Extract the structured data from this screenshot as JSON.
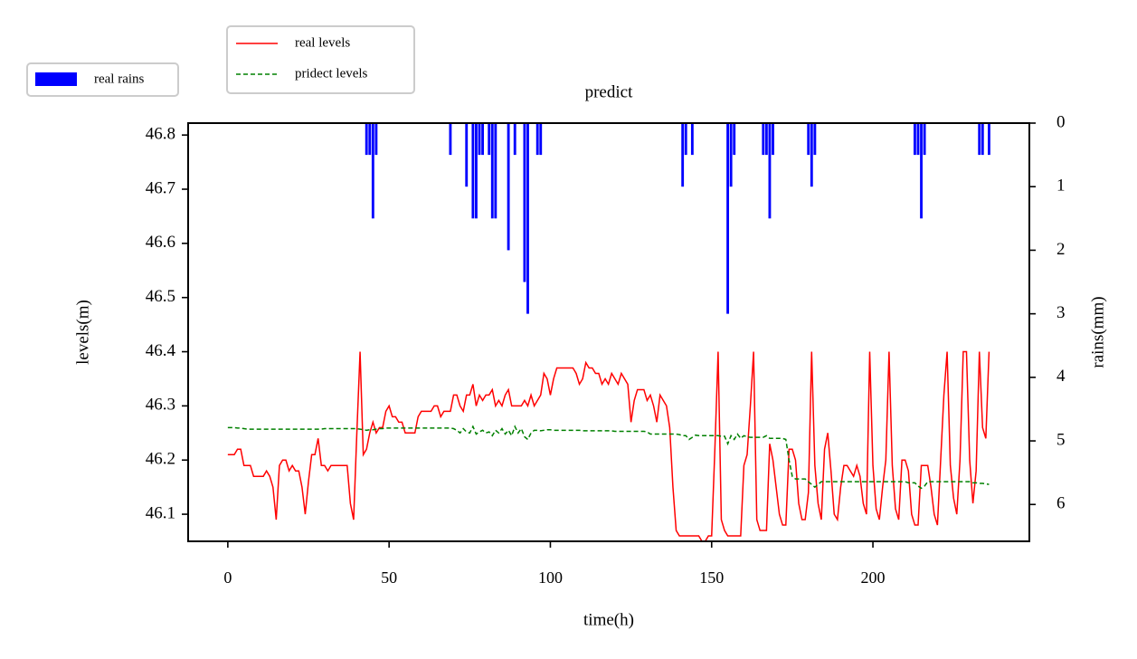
{
  "chart_data": {
    "type": "combo",
    "title": "predict",
    "x_label": "time(h)",
    "y_label": "levels(m)",
    "y2_label": "rains(mm)",
    "xlim": [
      -12.3,
      248.5
    ],
    "xticks": [
      0,
      50,
      100,
      150,
      200
    ],
    "ylim": [
      46.05,
      46.822
    ],
    "yticks": [
      46.1,
      46.2,
      46.3,
      46.4,
      46.5,
      46.6,
      46.7,
      46.8
    ],
    "y2lim": [
      6.58,
      0
    ],
    "y2ticks": [
      0,
      1,
      2,
      3,
      4,
      5,
      6
    ],
    "series": [
      {
        "name": "real rains",
        "type": "bar",
        "axis": "y2",
        "color": "#0000ff",
        "bar_width": 0.8,
        "x": [
          43,
          44,
          45,
          46,
          69,
          74,
          76,
          77,
          78,
          79,
          81,
          82,
          83,
          87,
          89,
          92,
          93,
          96,
          97,
          141,
          142,
          144,
          155,
          156,
          157,
          166,
          167,
          168,
          169,
          180,
          181,
          182,
          213,
          214,
          215,
          216,
          233,
          234,
          236
        ],
        "values": [
          0.5,
          0.5,
          1.5,
          0.5,
          0.5,
          1,
          1.5,
          1.5,
          0.5,
          0.5,
          0.5,
          1.5,
          1.5,
          2,
          0.5,
          2.5,
          3,
          0.5,
          0.5,
          1,
          0.5,
          0.5,
          3,
          1,
          0.5,
          0.5,
          0.5,
          1.5,
          0.5,
          0.5,
          1,
          0.5,
          0.5,
          0.5,
          1.5,
          0.5,
          0.5,
          0.5,
          0.5
        ]
      },
      {
        "name": "real levels",
        "type": "line",
        "color": "#ff0000",
        "linestyle": "solid",
        "x": [
          0,
          1,
          2,
          3,
          4,
          5,
          6,
          7,
          8,
          9,
          10,
          11,
          12,
          13,
          14,
          15,
          16,
          17,
          18,
          19,
          20,
          21,
          22,
          23,
          24,
          25,
          26,
          27,
          28,
          29,
          30,
          31,
          32,
          33,
          34,
          35,
          36,
          37,
          38,
          39,
          40,
          41,
          42,
          43,
          44,
          45,
          46,
          47,
          48,
          49,
          50,
          51,
          52,
          53,
          54,
          55,
          56,
          57,
          58,
          59,
          60,
          61,
          62,
          63,
          64,
          65,
          66,
          67,
          68,
          69,
          70,
          71,
          72,
          73,
          74,
          75,
          76,
          77,
          78,
          79,
          80,
          81,
          82,
          83,
          84,
          85,
          86,
          87,
          88,
          89,
          90,
          91,
          92,
          93,
          94,
          95,
          96,
          97,
          98,
          99,
          100,
          101,
          102,
          103,
          104,
          105,
          106,
          107,
          108,
          109,
          110,
          111,
          112,
          113,
          114,
          115,
          116,
          117,
          118,
          119,
          120,
          121,
          122,
          123,
          124,
          125,
          126,
          127,
          128,
          129,
          130,
          131,
          132,
          133,
          134,
          135,
          136,
          137,
          138,
          139,
          140,
          141,
          142,
          143,
          144,
          145,
          146,
          147,
          148,
          149,
          150,
          151,
          152,
          153,
          154,
          155,
          156,
          157,
          158,
          159,
          160,
          161,
          162,
          163,
          164,
          165,
          166,
          167,
          168,
          169,
          170,
          171,
          172,
          173,
          174,
          175,
          176,
          177,
          178,
          179,
          180,
          181,
          182,
          183,
          184,
          185,
          186,
          187,
          188,
          189,
          190,
          191,
          192,
          193,
          194,
          195,
          196,
          197,
          198,
          199,
          200,
          201,
          202,
          203,
          204,
          205,
          206,
          207,
          208,
          209,
          210,
          211,
          212,
          213,
          214,
          215,
          216,
          217,
          218,
          219,
          220,
          221,
          222,
          223,
          224,
          225,
          226,
          227,
          228,
          229,
          230,
          231,
          232,
          233,
          234,
          235,
          236
        ],
        "values": [
          46.21,
          46.21,
          46.21,
          46.22,
          46.22,
          46.19,
          46.19,
          46.19,
          46.17,
          46.17,
          46.17,
          46.17,
          46.18,
          46.17,
          46.15,
          46.09,
          46.19,
          46.2,
          46.2,
          46.18,
          46.19,
          46.18,
          46.18,
          46.15,
          46.1,
          46.16,
          46.21,
          46.21,
          46.24,
          46.19,
          46.19,
          46.18,
          46.19,
          46.19,
          46.19,
          46.19,
          46.19,
          46.19,
          46.12,
          46.09,
          46.25,
          46.4,
          46.21,
          46.22,
          46.25,
          46.27,
          46.25,
          46.26,
          46.26,
          46.29,
          46.3,
          46.28,
          46.28,
          46.27,
          46.27,
          46.25,
          46.25,
          46.25,
          46.25,
          46.28,
          46.29,
          46.29,
          46.29,
          46.29,
          46.3,
          46.3,
          46.28,
          46.29,
          46.29,
          46.29,
          46.32,
          46.32,
          46.3,
          46.29,
          46.32,
          46.32,
          46.34,
          46.3,
          46.32,
          46.31,
          46.32,
          46.32,
          46.33,
          46.3,
          46.31,
          46.3,
          46.32,
          46.33,
          46.3,
          46.3,
          46.3,
          46.3,
          46.31,
          46.3,
          46.32,
          46.3,
          46.31,
          46.32,
          46.36,
          46.35,
          46.32,
          46.35,
          46.37,
          46.37,
          46.37,
          46.37,
          46.37,
          46.37,
          46.36,
          46.34,
          46.35,
          46.38,
          46.37,
          46.37,
          46.36,
          46.36,
          46.34,
          46.35,
          46.34,
          46.36,
          46.35,
          46.34,
          46.36,
          46.35,
          46.34,
          46.27,
          46.31,
          46.33,
          46.33,
          46.33,
          46.31,
          46.32,
          46.3,
          46.27,
          46.32,
          46.31,
          46.3,
          46.26,
          46.15,
          46.07,
          46.06,
          46.06,
          46.06,
          46.06,
          46.06,
          46.06,
          46.06,
          46.05,
          46.05,
          46.06,
          46.06,
          46.22,
          46.4,
          46.09,
          46.07,
          46.06,
          46.06,
          46.06,
          46.06,
          46.06,
          46.19,
          46.21,
          46.3,
          46.4,
          46.09,
          46.07,
          46.07,
          46.07,
          46.23,
          46.2,
          46.15,
          46.1,
          46.08,
          46.08,
          46.22,
          46.22,
          46.2,
          46.12,
          46.09,
          46.09,
          46.14,
          46.4,
          46.19,
          46.12,
          46.09,
          46.22,
          46.25,
          46.18,
          46.1,
          46.09,
          46.15,
          46.19,
          46.19,
          46.18,
          46.17,
          46.19,
          46.17,
          46.12,
          46.1,
          46.4,
          46.19,
          46.11,
          46.09,
          46.15,
          46.2,
          46.4,
          46.19,
          46.11,
          46.09,
          46.2,
          46.2,
          46.18,
          46.1,
          46.08,
          46.08,
          46.19,
          46.19,
          46.19,
          46.15,
          46.1,
          46.08,
          46.2,
          46.32,
          46.4,
          46.19,
          46.13,
          46.1,
          46.2,
          46.4,
          46.4,
          46.2,
          46.12,
          46.18,
          46.4,
          46.26,
          46.24,
          46.4
        ]
      },
      {
        "name": "pridect levels",
        "type": "line",
        "color": "#008000",
        "linestyle": "dashed",
        "x": [
          0,
          1,
          2,
          3,
          4,
          5,
          6,
          7,
          8,
          9,
          10,
          11,
          12,
          13,
          14,
          15,
          16,
          17,
          18,
          19,
          20,
          21,
          22,
          23,
          24,
          25,
          26,
          27,
          28,
          29,
          30,
          31,
          32,
          33,
          34,
          35,
          36,
          37,
          38,
          39,
          40,
          41,
          42,
          43,
          44,
          45,
          46,
          47,
          48,
          49,
          50,
          51,
          52,
          53,
          54,
          55,
          56,
          57,
          58,
          59,
          60,
          61,
          62,
          63,
          64,
          65,
          66,
          67,
          68,
          69,
          70,
          71,
          72,
          73,
          74,
          75,
          76,
          77,
          78,
          79,
          80,
          81,
          82,
          83,
          84,
          85,
          86,
          87,
          88,
          89,
          90,
          91,
          92,
          93,
          94,
          95,
          96,
          97,
          98,
          99,
          100,
          101,
          102,
          103,
          104,
          105,
          106,
          107,
          108,
          109,
          110,
          111,
          112,
          113,
          114,
          115,
          116,
          117,
          118,
          119,
          120,
          121,
          122,
          123,
          124,
          125,
          126,
          127,
          128,
          129,
          130,
          131,
          132,
          133,
          134,
          135,
          136,
          137,
          138,
          139,
          140,
          141,
          142,
          143,
          144,
          145,
          146,
          147,
          148,
          149,
          150,
          151,
          152,
          153,
          154,
          155,
          156,
          157,
          158,
          159,
          160,
          161,
          162,
          163,
          164,
          165,
          166,
          167,
          168,
          169,
          170,
          171,
          172,
          173,
          174,
          175,
          176,
          177,
          178,
          179,
          180,
          181,
          182,
          183,
          184,
          185,
          186,
          187,
          188,
          189,
          190,
          191,
          192,
          193,
          194,
          195,
          196,
          197,
          198,
          199,
          200,
          201,
          202,
          203,
          204,
          205,
          206,
          207,
          208,
          209,
          210,
          211,
          212,
          213,
          214,
          215,
          216,
          217,
          218,
          219,
          220,
          221,
          222,
          223,
          224,
          225,
          226,
          227,
          228,
          229,
          230,
          231,
          232,
          233,
          234,
          235,
          236
        ],
        "values": [
          46.26,
          46.26,
          46.26,
          46.259,
          46.259,
          46.258,
          46.257,
          46.257,
          46.257,
          46.257,
          46.257,
          46.257,
          46.257,
          46.257,
          46.257,
          46.257,
          46.257,
          46.257,
          46.257,
          46.257,
          46.257,
          46.257,
          46.257,
          46.257,
          46.257,
          46.257,
          46.257,
          46.257,
          46.257,
          46.257,
          46.258,
          46.258,
          46.258,
          46.258,
          46.258,
          46.258,
          46.258,
          46.258,
          46.258,
          46.258,
          46.258,
          46.257,
          46.256,
          46.255,
          46.256,
          46.256,
          46.257,
          46.258,
          46.258,
          46.259,
          46.259,
          46.259,
          46.259,
          46.259,
          46.259,
          46.259,
          46.259,
          46.259,
          46.259,
          46.259,
          46.259,
          46.259,
          46.259,
          46.259,
          46.259,
          46.259,
          46.259,
          46.259,
          46.259,
          46.259,
          46.258,
          46.255,
          46.25,
          46.258,
          46.252,
          46.25,
          46.262,
          46.248,
          46.252,
          46.255,
          46.25,
          46.252,
          46.245,
          46.255,
          46.25,
          46.258,
          46.248,
          46.255,
          46.245,
          46.262,
          46.25,
          46.258,
          46.243,
          46.238,
          46.25,
          46.255,
          46.255,
          46.254,
          46.255,
          46.256,
          46.256,
          46.255,
          46.255,
          46.255,
          46.255,
          46.255,
          46.255,
          46.255,
          46.255,
          46.255,
          46.254,
          46.254,
          46.254,
          46.254,
          46.254,
          46.254,
          46.254,
          46.254,
          46.254,
          46.254,
          46.253,
          46.253,
          46.253,
          46.253,
          46.253,
          46.253,
          46.253,
          46.253,
          46.253,
          46.253,
          46.252,
          46.248,
          46.248,
          46.248,
          46.248,
          46.248,
          46.248,
          46.248,
          46.248,
          46.248,
          46.247,
          46.245,
          46.245,
          46.238,
          46.242,
          46.246,
          46.245,
          46.245,
          46.245,
          46.245,
          46.245,
          46.245,
          46.245,
          46.244,
          46.244,
          46.23,
          46.245,
          46.238,
          46.248,
          46.24,
          46.245,
          46.243,
          46.242,
          46.242,
          46.242,
          46.242,
          46.242,
          46.245,
          46.24,
          46.24,
          46.24,
          46.24,
          46.24,
          46.238,
          46.2,
          46.17,
          46.165,
          46.165,
          46.165,
          46.165,
          46.16,
          46.155,
          46.15,
          46.155,
          46.16,
          46.16,
          46.16,
          46.16,
          46.16,
          46.16,
          46.16,
          46.16,
          46.16,
          46.16,
          46.16,
          46.16,
          46.16,
          46.16,
          46.16,
          46.16,
          46.16,
          46.16,
          46.16,
          46.16,
          46.16,
          46.16,
          46.16,
          46.16,
          46.16,
          46.16,
          46.16,
          46.158,
          46.158,
          46.158,
          46.152,
          46.148,
          46.152,
          46.16,
          46.16,
          46.16,
          46.16,
          46.16,
          46.16,
          46.16,
          46.16,
          46.16,
          46.16,
          46.16,
          46.16,
          46.16,
          46.16,
          46.158,
          46.158,
          46.157,
          46.157,
          46.156,
          46.155
        ]
      }
    ]
  }
}
